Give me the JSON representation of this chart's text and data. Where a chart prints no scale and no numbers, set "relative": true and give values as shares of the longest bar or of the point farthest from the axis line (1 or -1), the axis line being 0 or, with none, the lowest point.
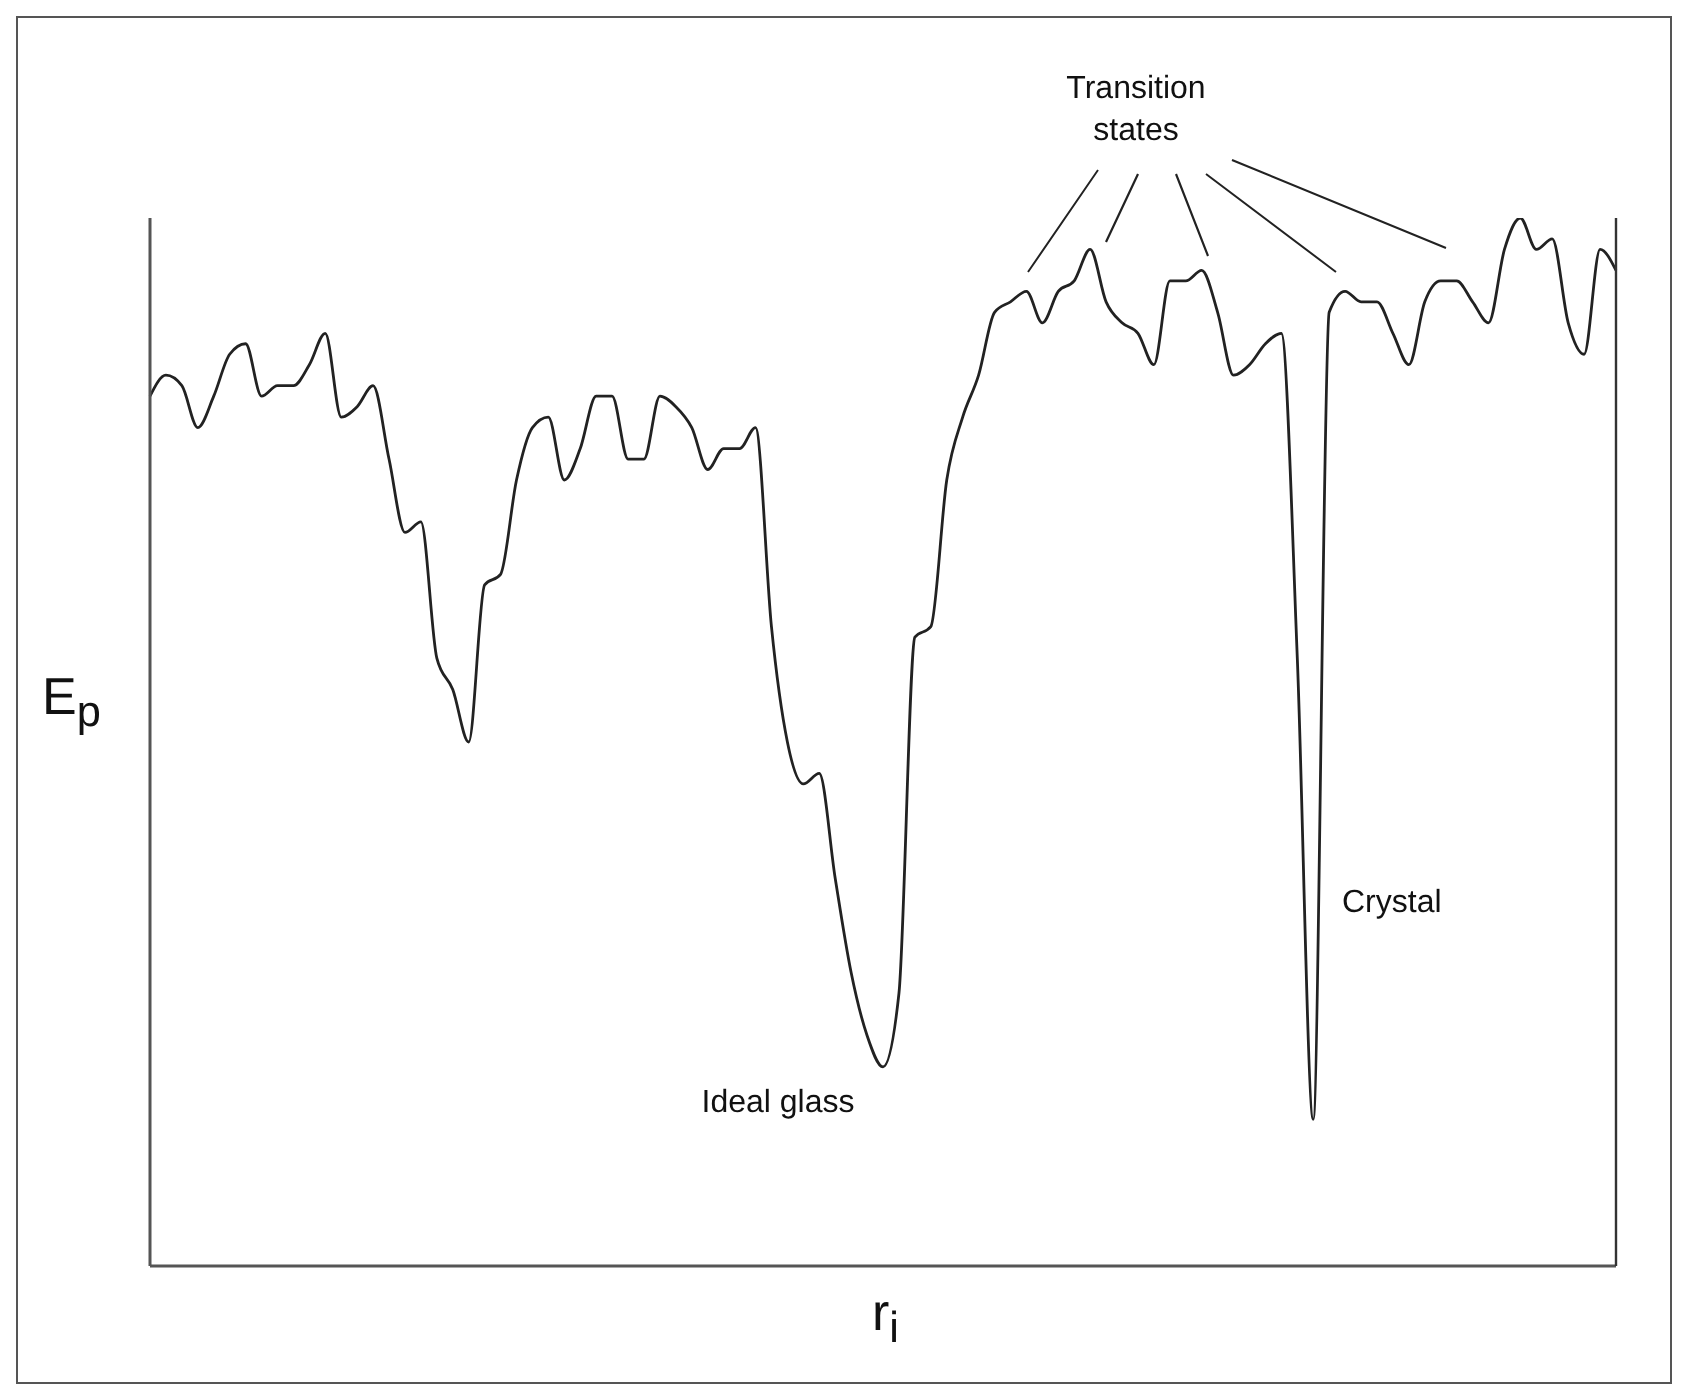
{
  "chart_data": {
    "type": "line",
    "relative": true,
    "xlabel": "r$_{i}$",
    "ylabel": "E$_{p}$",
    "annotations": [
      "Transition states",
      "Ideal glass",
      "Crystal"
    ],
    "categories": [
      null,
      null,
      null,
      null,
      null,
      null,
      null,
      null,
      null,
      null,
      null,
      null,
      null,
      null,
      null,
      null,
      null,
      null,
      null,
      null,
      null,
      null,
      null,
      null,
      null,
      null,
      null,
      null,
      null,
      null,
      null,
      null,
      null,
      null,
      null,
      null,
      null,
      null,
      null,
      null,
      null,
      null,
      null,
      null,
      null,
      null,
      null,
      null,
      null,
      null,
      null,
      null,
      null,
      null,
      null,
      null,
      null,
      null,
      null,
      null,
      null,
      null,
      null,
      null,
      null,
      null,
      null,
      null,
      null,
      null,
      null,
      null,
      null,
      null,
      null,
      null,
      null,
      null,
      null,
      null,
      null,
      null,
      null,
      null,
      null,
      null,
      null,
      null,
      null,
      null,
      null,
      null,
      null
    ],
    "series": [
      {
        "color": "#222222",
        "values": [
          0.83,
          0.85,
          0.84,
          0.8,
          0.83,
          0.87,
          0.88,
          0.83,
          0.84,
          0.84,
          0.86,
          0.89,
          0.81,
          0.82,
          0.84,
          0.77,
          0.7,
          0.71,
          0.58,
          0.55,
          0.5,
          0.65,
          0.66,
          0.75,
          0.8,
          0.81,
          0.75,
          0.78,
          0.83,
          0.83,
          0.77,
          0.77,
          0.83,
          0.82,
          0.8,
          0.76,
          0.78,
          0.78,
          0.8,
          0.61,
          0.5,
          0.46,
          0.47,
          0.37,
          0.28,
          0.22,
          0.19,
          0.26,
          0.6,
          0.61,
          0.75,
          0.81,
          0.85,
          0.91,
          0.92,
          0.93,
          0.9,
          0.93,
          0.94,
          0.97,
          0.92,
          0.9,
          0.89,
          0.86,
          0.94,
          0.94,
          0.95,
          0.91,
          0.85,
          0.86,
          0.88,
          0.89,
          0.58,
          0.14,
          0.91,
          0.93,
          0.92,
          0.92,
          0.89,
          0.86,
          0.92,
          0.94,
          0.94,
          0.92,
          0.9,
          0.97,
          1,
          0.97,
          0.98,
          0.9,
          0.87,
          0.97,
          0.95
        ]
      }
    ],
    "grid": false,
    "legend": false,
    "marker": "none",
    "line_style": "solid"
  }
}
